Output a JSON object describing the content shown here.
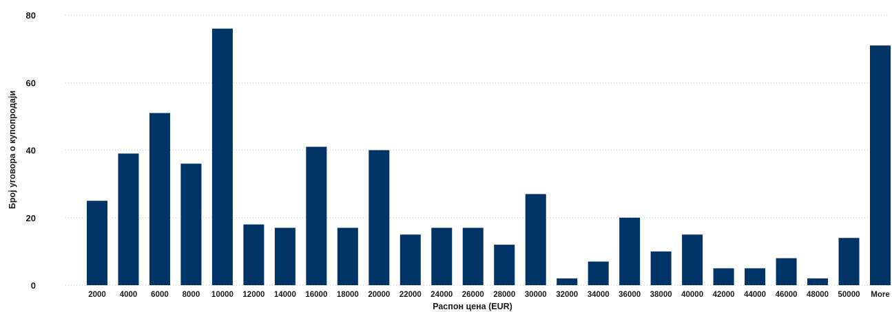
{
  "chart_data": {
    "type": "bar",
    "title": "",
    "xlabel": "Распон цена (EUR)",
    "ylabel": "Број уговора о купопродаји",
    "categories": [
      "2000",
      "4000",
      "6000",
      "8000",
      "10000",
      "12000",
      "14000",
      "16000",
      "18000",
      "20000",
      "22000",
      "24000",
      "26000",
      "28000",
      "30000",
      "32000",
      "34000",
      "36000",
      "38000",
      "40000",
      "42000",
      "44000",
      "46000",
      "48000",
      "50000",
      "More"
    ],
    "values": [
      25,
      39,
      51,
      36,
      76,
      18,
      17,
      41,
      17,
      40,
      15,
      17,
      17,
      12,
      27,
      2,
      7,
      20,
      10,
      15,
      5,
      5,
      8,
      2,
      14,
      71
    ],
    "ylim": [
      0,
      80
    ],
    "yticks": [
      0,
      20,
      40,
      60,
      80
    ],
    "grid": true,
    "legend": "none",
    "bar_color": "#003366"
  }
}
